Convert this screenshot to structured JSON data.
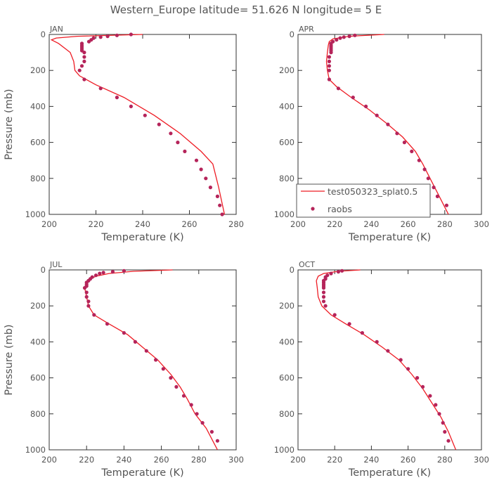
{
  "title": "Western_Europe  latitude= 51.626 N longitude= 5 E",
  "colors": {
    "model": "#ee1c24",
    "obs": "#b5245a",
    "axis": "#333333",
    "text": "#555555"
  },
  "legend": {
    "model_label": "test050323_splat0.5",
    "obs_label": "raobs",
    "placement": "lower-right of APR panel"
  },
  "chart_data": [
    {
      "type": "line",
      "panel": "JAN",
      "xlabel": "Temperature (K)",
      "ylabel": "Pressure (mb)",
      "xlim": [
        200,
        280
      ],
      "ylim": [
        1000,
        0
      ],
      "xticks": [
        200,
        220,
        240,
        260,
        280
      ],
      "yticks": [
        0,
        200,
        400,
        600,
        800,
        1000
      ],
      "series": [
        {
          "role": "model",
          "points": [
            [
              240,
              0
            ],
            [
              212,
              10
            ],
            [
              203,
              20
            ],
            [
              201,
              30
            ],
            [
              204,
              50
            ],
            [
              207,
              80
            ],
            [
              209,
              100
            ],
            [
              210.5,
              150
            ],
            [
              211,
              200
            ],
            [
              213,
              230
            ],
            [
              220,
              280
            ],
            [
              232,
              350
            ],
            [
              245,
              450
            ],
            [
              256,
              550
            ],
            [
              265,
              650
            ],
            [
              270,
              720
            ],
            [
              272.5,
              850
            ],
            [
              275,
              1000
            ]
          ]
        },
        {
          "name": "raobs",
          "role": "obs",
          "points": [
            [
              235,
              0
            ],
            [
              229,
              5
            ],
            [
              225,
              10
            ],
            [
              222,
              15
            ],
            [
              219,
              20
            ],
            [
              218,
              30
            ],
            [
              217,
              40
            ],
            [
              214,
              50
            ],
            [
              214,
              60
            ],
            [
              214,
              70
            ],
            [
              214,
              80
            ],
            [
              214,
              90
            ],
            [
              215,
              100
            ],
            [
              215,
              125
            ],
            [
              215,
              150
            ],
            [
              214,
              175
            ],
            [
              213,
              200
            ],
            [
              215,
              250
            ],
            [
              222,
              300
            ],
            [
              229,
              350
            ],
            [
              235,
              400
            ],
            [
              241,
              450
            ],
            [
              247,
              500
            ],
            [
              252,
              550
            ],
            [
              255,
              600
            ],
            [
              258,
              650
            ],
            [
              263,
              700
            ],
            [
              265,
              750
            ],
            [
              267,
              800
            ],
            [
              269,
              850
            ],
            [
              272,
              900
            ],
            [
              273,
              950
            ],
            [
              274,
              1000
            ]
          ]
        }
      ]
    },
    {
      "type": "line",
      "panel": "APR",
      "xlabel": "Temperature (K)",
      "ylabel": "",
      "xlim": [
        200,
        300
      ],
      "ylim": [
        1000,
        0
      ],
      "xticks": [
        200,
        220,
        240,
        260,
        280,
        300
      ],
      "yticks": [
        0,
        200,
        400,
        600,
        800,
        1000
      ],
      "series": [
        {
          "role": "model",
          "points": [
            [
              247,
              0
            ],
            [
              228,
              10
            ],
            [
              219,
              25
            ],
            [
              217,
              40
            ],
            [
              216.5,
              60
            ],
            [
              216,
              100
            ],
            [
              215.5,
              150
            ],
            [
              216,
              200
            ],
            [
              217,
              250
            ],
            [
              221,
              290
            ],
            [
              229,
              350
            ],
            [
              239,
              420
            ],
            [
              249,
              500
            ],
            [
              257,
              570
            ],
            [
              264,
              650
            ],
            [
              268,
              720
            ],
            [
              272,
              800
            ],
            [
              276,
              880
            ],
            [
              282,
              1000
            ]
          ]
        },
        {
          "name": "raobs",
          "role": "obs",
          "points": [
            [
              231,
              5
            ],
            [
              228,
              10
            ],
            [
              225,
              15
            ],
            [
              223,
              20
            ],
            [
              221,
              30
            ],
            [
              219,
              40
            ],
            [
              218,
              50
            ],
            [
              218,
              60
            ],
            [
              218,
              70
            ],
            [
              218,
              80
            ],
            [
              218,
              90
            ],
            [
              218,
              100
            ],
            [
              217,
              125
            ],
            [
              217,
              150
            ],
            [
              217,
              175
            ],
            [
              217,
              200
            ],
            [
              217,
              250
            ],
            [
              222,
              300
            ],
            [
              230,
              350
            ],
            [
              237,
              400
            ],
            [
              243,
              450
            ],
            [
              249,
              500
            ],
            [
              254,
              550
            ],
            [
              258,
              600
            ],
            [
              262,
              650
            ],
            [
              266,
              700
            ],
            [
              269,
              750
            ],
            [
              271,
              800
            ],
            [
              274,
              850
            ],
            [
              276,
              900
            ],
            [
              281,
              950
            ]
          ]
        }
      ]
    },
    {
      "type": "line",
      "panel": "JUL",
      "xlabel": "Temperature (K)",
      "ylabel": "Pressure (mb)",
      "xlim": [
        200,
        300
      ],
      "ylim": [
        1000,
        0
      ],
      "xticks": [
        200,
        220,
        240,
        260,
        280,
        300
      ],
      "yticks": [
        0,
        200,
        400,
        600,
        800,
        1000
      ],
      "series": [
        {
          "role": "model",
          "points": [
            [
              266,
              0
            ],
            [
              245,
              8
            ],
            [
              232,
              20
            ],
            [
              225,
              35
            ],
            [
              221,
              55
            ],
            [
              219.5,
              80
            ],
            [
              219,
              100
            ],
            [
              220,
              150
            ],
            [
              221,
              200
            ],
            [
              224,
              250
            ],
            [
              232,
              300
            ],
            [
              242,
              360
            ],
            [
              250,
              430
            ],
            [
              258,
              500
            ],
            [
              265,
              580
            ],
            [
              270,
              650
            ],
            [
              274,
              720
            ],
            [
              278,
              800
            ],
            [
              284,
              880
            ],
            [
              290,
              1000
            ]
          ]
        },
        {
          "name": "raobs",
          "role": "obs",
          "points": [
            [
              240,
              5
            ],
            [
              234,
              10
            ],
            [
              229,
              15
            ],
            [
              227,
              20
            ],
            [
              225,
              30
            ],
            [
              223,
              40
            ],
            [
              222,
              50
            ],
            [
              221,
              60
            ],
            [
              220,
              70
            ],
            [
              220,
              80
            ],
            [
              220,
              90
            ],
            [
              219,
              100
            ],
            [
              220,
              125
            ],
            [
              220,
              150
            ],
            [
              221,
              175
            ],
            [
              221,
              200
            ],
            [
              224,
              250
            ],
            [
              231,
              300
            ],
            [
              240,
              350
            ],
            [
              246,
              400
            ],
            [
              252,
              450
            ],
            [
              257,
              500
            ],
            [
              261,
              550
            ],
            [
              265,
              600
            ],
            [
              268,
              650
            ],
            [
              272,
              700
            ],
            [
              276,
              750
            ],
            [
              279,
              800
            ],
            [
              282,
              850
            ],
            [
              287,
              900
            ],
            [
              290,
              950
            ]
          ]
        }
      ]
    },
    {
      "type": "line",
      "panel": "OCT",
      "xlabel": "Temperature (K)",
      "ylabel": "",
      "xlim": [
        200,
        300
      ],
      "ylim": [
        1000,
        0
      ],
      "xticks": [
        200,
        220,
        240,
        260,
        280,
        300
      ],
      "yticks": [
        0,
        200,
        400,
        600,
        800,
        1000
      ],
      "series": [
        {
          "role": "model",
          "points": [
            [
              234,
              0
            ],
            [
              222,
              8
            ],
            [
              214,
              20
            ],
            [
              211,
              35
            ],
            [
              210,
              60
            ],
            [
              210.5,
              100
            ],
            [
              211,
              150
            ],
            [
              213,
              200
            ],
            [
              218,
              250
            ],
            [
              226,
              300
            ],
            [
              236,
              360
            ],
            [
              246,
              430
            ],
            [
              255,
              500
            ],
            [
              262,
              580
            ],
            [
              268,
              660
            ],
            [
              273,
              740
            ],
            [
              278,
              820
            ],
            [
              282,
              900
            ],
            [
              286,
              1000
            ]
          ]
        },
        {
          "name": "raobs",
          "role": "obs",
          "points": [
            [
              224,
              5
            ],
            [
              222,
              10
            ],
            [
              218,
              20
            ],
            [
              216,
              30
            ],
            [
              215,
              40
            ],
            [
              215,
              50
            ],
            [
              214,
              60
            ],
            [
              214,
              70
            ],
            [
              214,
              80
            ],
            [
              214,
              90
            ],
            [
              214,
              100
            ],
            [
              214,
              125
            ],
            [
              214,
              150
            ],
            [
              214,
              175
            ],
            [
              215,
              200
            ],
            [
              220,
              250
            ],
            [
              228,
              300
            ],
            [
              235,
              350
            ],
            [
              243,
              400
            ],
            [
              249,
              450
            ],
            [
              256,
              500
            ],
            [
              260,
              550
            ],
            [
              265,
              600
            ],
            [
              268,
              650
            ],
            [
              272,
              700
            ],
            [
              275,
              750
            ],
            [
              277,
              800
            ],
            [
              279,
              850
            ],
            [
              280,
              900
            ],
            [
              282,
              950
            ]
          ]
        }
      ]
    }
  ]
}
